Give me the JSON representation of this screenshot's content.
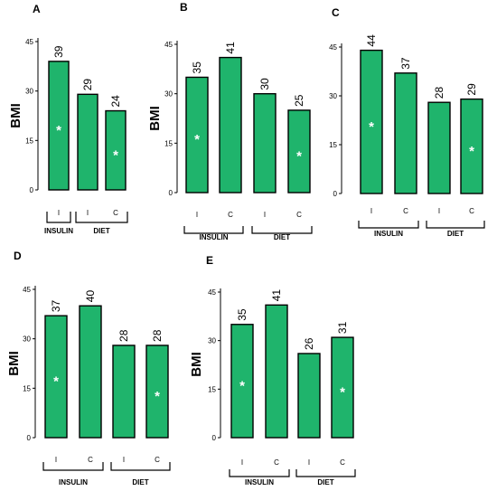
{
  "chart_data": [
    {
      "type": "bar",
      "panel": "A",
      "ylabel": "BMI",
      "ylim": [
        0,
        45
      ],
      "yticks": [
        "0",
        "15",
        "30",
        "45"
      ],
      "categories": [
        "I",
        "I",
        "C"
      ],
      "values": [
        39,
        29,
        24
      ],
      "value_labels": [
        "39",
        "29",
        "24"
      ],
      "significant": [
        true,
        false,
        true
      ],
      "groups": [
        {
          "name": "INSULIN",
          "bars": [
            0
          ]
        },
        {
          "name": "DIET",
          "bars": [
            1,
            2
          ]
        }
      ]
    },
    {
      "type": "bar",
      "panel": "B",
      "ylabel": "BMI",
      "ylim": [
        0,
        45
      ],
      "yticks": [
        "0",
        "15",
        "30",
        "45"
      ],
      "categories": [
        "I",
        "C",
        "I",
        "C"
      ],
      "values": [
        35,
        41,
        30,
        25
      ],
      "value_labels": [
        "35",
        "41",
        "30",
        "25"
      ],
      "significant": [
        true,
        false,
        false,
        true
      ],
      "groups": [
        {
          "name": "INSULIN",
          "bars": [
            0,
            1
          ]
        },
        {
          "name": "DIET",
          "bars": [
            2,
            3
          ]
        }
      ]
    },
    {
      "type": "bar",
      "panel": "C",
      "ylabel": "",
      "ylim": [
        0,
        45
      ],
      "yticks": [
        "0",
        "15",
        "30",
        "45"
      ],
      "categories": [
        "I",
        "C",
        "I",
        "C"
      ],
      "values": [
        44,
        37,
        28,
        29
      ],
      "value_labels": [
        "44",
        "37",
        "28",
        "29"
      ],
      "significant": [
        true,
        false,
        false,
        true
      ],
      "groups": [
        {
          "name": "INSULIN",
          "bars": [
            0,
            1
          ]
        },
        {
          "name": "DIET",
          "bars": [
            2,
            3
          ]
        }
      ]
    },
    {
      "type": "bar",
      "panel": "D",
      "ylabel": "BMI",
      "ylim": [
        0,
        45
      ],
      "yticks": [
        "0",
        "15",
        "30",
        "45"
      ],
      "categories": [
        "I",
        "C",
        "I",
        "C"
      ],
      "values": [
        37,
        40,
        28,
        28
      ],
      "value_labels": [
        "37",
        "40",
        "28",
        "28"
      ],
      "significant": [
        true,
        false,
        false,
        true
      ],
      "groups": [
        {
          "name": "INSULIN",
          "bars": [
            0,
            1
          ]
        },
        {
          "name": "DIET",
          "bars": [
            2,
            3
          ]
        }
      ]
    },
    {
      "type": "bar",
      "panel": "E",
      "ylabel": "BMI",
      "ylim": [
        0,
        45
      ],
      "yticks": [
        "0",
        "15",
        "30",
        "45"
      ],
      "categories": [
        "I",
        "C",
        "I",
        "C"
      ],
      "values": [
        35,
        41,
        26,
        31
      ],
      "value_labels": [
        "35",
        "41",
        "26",
        "31"
      ],
      "significant": [
        true,
        false,
        false,
        true
      ],
      "groups": [
        {
          "name": "INSULIN",
          "bars": [
            0,
            1
          ]
        },
        {
          "name": "DIET",
          "bars": [
            2,
            3
          ]
        }
      ]
    }
  ],
  "style": {
    "bar_color": "#1fb46c",
    "star_color": "#ffffff",
    "star_symbol": "*"
  }
}
